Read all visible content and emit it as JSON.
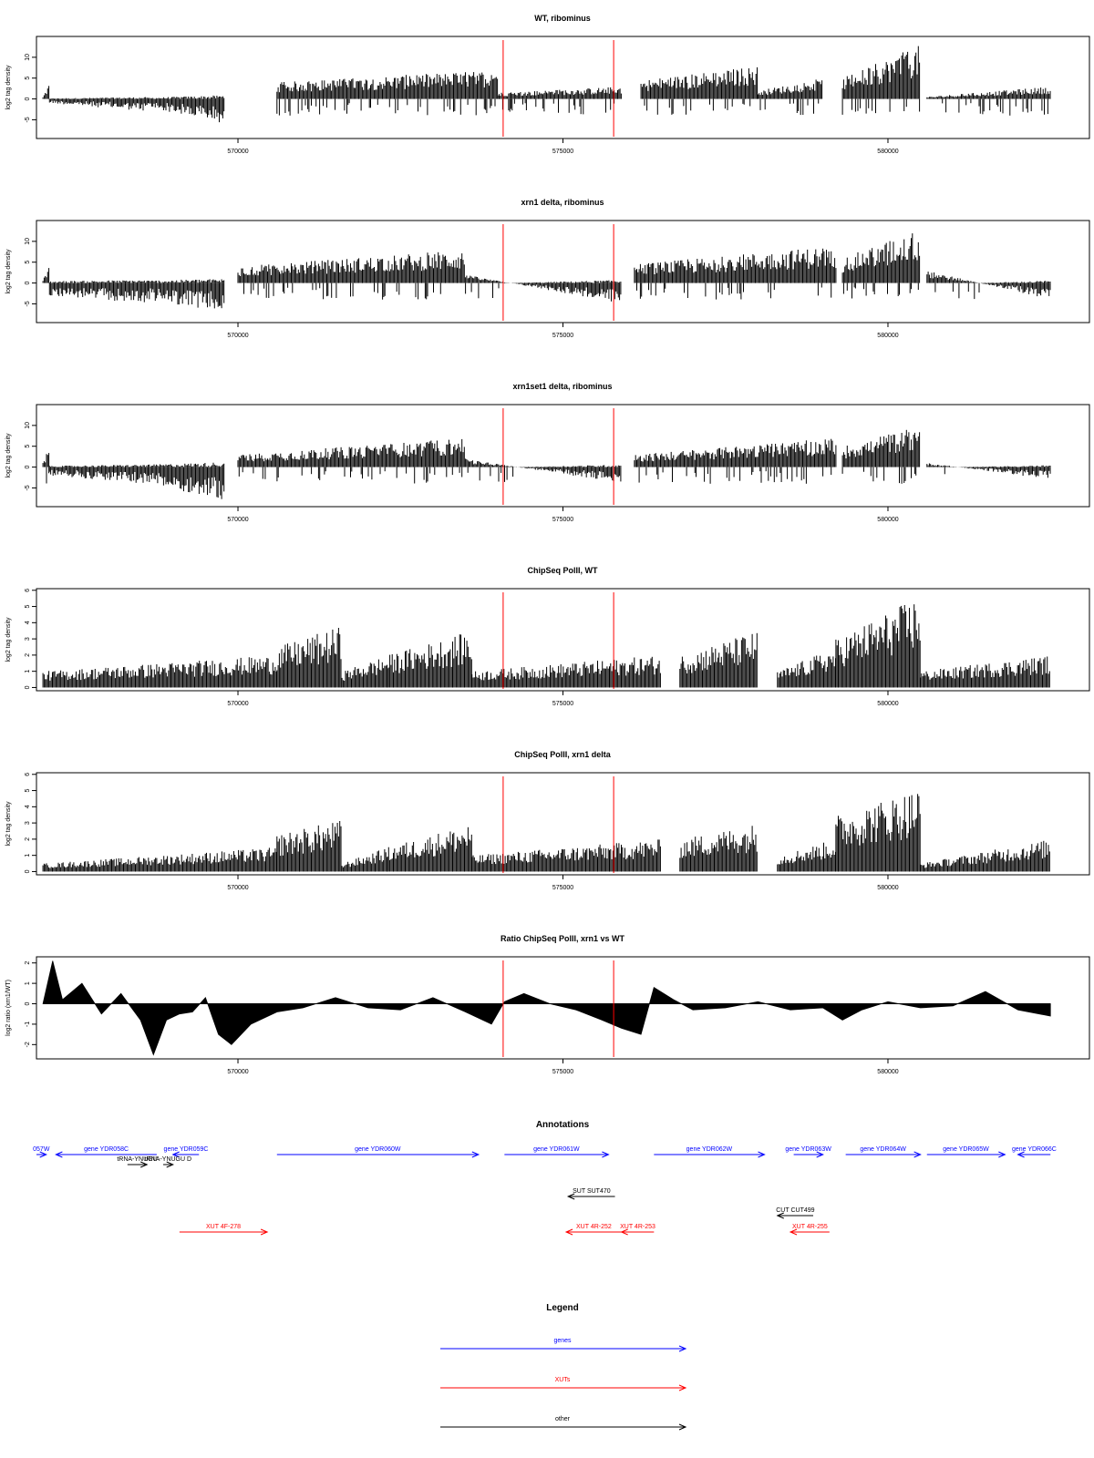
{
  "chart_data": [
    {
      "type": "bar",
      "title": "WT, ribominus",
      "ylabel": "log2 tag density",
      "xlabel": "",
      "xlim": [
        566900,
        583100
      ],
      "ylim": [
        -9.5,
        15
      ],
      "yticks": [
        -5,
        0,
        5,
        10
      ],
      "xticks": [
        570000,
        575000,
        580000
      ],
      "xtick_labels": [
        "570000",
        "575000",
        "580000"
      ],
      "markers": [
        574080,
        575780
      ],
      "segments": [
        {
          "x": [
            567000,
            567100
          ],
          "values": [
            0.5,
            4
          ]
        },
        {
          "x": [
            567100,
            568600
          ],
          "values": [
            -1,
            -3
          ]
        },
        {
          "x": [
            568600,
            569800
          ],
          "values": [
            -2,
            -6
          ]
        },
        {
          "x": [
            570600,
            574000
          ],
          "values": [
            4,
            7
          ]
        },
        {
          "x": [
            574000,
            575900
          ],
          "values": [
            1.5,
            3
          ]
        },
        {
          "x": [
            576200,
            578000
          ],
          "values": [
            4.5,
            8
          ]
        },
        {
          "x": [
            578000,
            579000
          ],
          "values": [
            2,
            5
          ]
        },
        {
          "x": [
            579300,
            580500
          ],
          "values": [
            5,
            13
          ]
        },
        {
          "x": [
            580600,
            582500
          ],
          "values": [
            0.5,
            3
          ]
        }
      ]
    },
    {
      "type": "bar",
      "title": "xrn1 delta, ribominus",
      "ylabel": "log2 tag density",
      "xlabel": "",
      "xlim": [
        566900,
        583100
      ],
      "ylim": [
        -9.5,
        15
      ],
      "yticks": [
        -5,
        0,
        5,
        10
      ],
      "xticks": [
        570000,
        575000,
        580000
      ],
      "xtick_labels": [
        "570000",
        "575000",
        "580000"
      ],
      "markers": [
        574080,
        575780
      ],
      "segments": [
        {
          "x": [
            567000,
            567100
          ],
          "values": [
            1,
            4
          ]
        },
        {
          "x": [
            567100,
            568600
          ],
          "values": [
            -3,
            -5
          ]
        },
        {
          "x": [
            568600,
            569800
          ],
          "values": [
            -4,
            -7
          ]
        },
        {
          "x": [
            570000,
            573500
          ],
          "values": [
            4,
            8
          ]
        },
        {
          "x": [
            573500,
            575900
          ],
          "values": [
            2,
            -5
          ]
        },
        {
          "x": [
            576100,
            579200
          ],
          "values": [
            4.5,
            9
          ]
        },
        {
          "x": [
            579300,
            580500
          ],
          "values": [
            6,
            13
          ]
        },
        {
          "x": [
            580600,
            582500
          ],
          "values": [
            3,
            -4
          ]
        }
      ]
    },
    {
      "type": "bar",
      "title": "xrn1set1 delta, ribominus",
      "ylabel": "log2 tag density",
      "xlabel": "",
      "xlim": [
        566900,
        583100
      ],
      "ylim": [
        -9.5,
        15
      ],
      "yticks": [
        -5,
        0,
        5,
        10
      ],
      "xticks": [
        570000,
        575000,
        580000
      ],
      "xtick_labels": [
        "570000",
        "575000",
        "580000"
      ],
      "markers": [
        574080,
        575780
      ],
      "segments": [
        {
          "x": [
            567000,
            567100
          ],
          "values": [
            1,
            5
          ]
        },
        {
          "x": [
            567100,
            568600
          ],
          "values": [
            -2,
            -4
          ]
        },
        {
          "x": [
            568600,
            569800
          ],
          "values": [
            -4,
            -8
          ]
        },
        {
          "x": [
            570000,
            573500
          ],
          "values": [
            3,
            7
          ]
        },
        {
          "x": [
            573500,
            575900
          ],
          "values": [
            2,
            -4
          ]
        },
        {
          "x": [
            576100,
            579200
          ],
          "values": [
            3,
            7
          ]
        },
        {
          "x": [
            579300,
            580500
          ],
          "values": [
            5,
            10
          ]
        },
        {
          "x": [
            580600,
            582500
          ],
          "values": [
            1,
            -3
          ]
        }
      ]
    },
    {
      "type": "bar",
      "title": "ChipSeq PolII, WT",
      "ylabel": "log2 tag density",
      "xlabel": "",
      "xlim": [
        566900,
        583100
      ],
      "ylim": [
        -0.2,
        6.1
      ],
      "yticks": [
        0,
        1,
        2,
        3,
        4,
        5,
        6
      ],
      "xticks": [
        570000,
        575000,
        580000
      ],
      "xtick_labels": [
        "570000",
        "575000",
        "580000"
      ],
      "markers": [
        574080,
        575780
      ],
      "segments": [
        {
          "x": [
            567000,
            570600
          ],
          "values": [
            1,
            2
          ]
        },
        {
          "x": [
            570600,
            571600
          ],
          "values": [
            2.5,
            3.8
          ]
        },
        {
          "x": [
            571600,
            572300
          ],
          "values": [
            1,
            2
          ]
        },
        {
          "x": [
            572300,
            573600
          ],
          "values": [
            2,
            3.5
          ]
        },
        {
          "x": [
            573600,
            576500
          ],
          "values": [
            1,
            2
          ]
        },
        {
          "x": [
            576800,
            578000
          ],
          "values": [
            2,
            3.5
          ]
        },
        {
          "x": [
            578300,
            579200
          ],
          "values": [
            1,
            2.5
          ]
        },
        {
          "x": [
            579200,
            580500
          ],
          "values": [
            3,
            5.7
          ]
        },
        {
          "x": [
            580500,
            582500
          ],
          "values": [
            1,
            2
          ]
        }
      ]
    },
    {
      "type": "bar",
      "title": "ChipSeq PolII, xrn1 delta",
      "ylabel": "log2 tag density",
      "xlabel": "",
      "xlim": [
        566900,
        583100
      ],
      "ylim": [
        -0.2,
        6.1
      ],
      "yticks": [
        0,
        1,
        2,
        3,
        4,
        5,
        6
      ],
      "xticks": [
        570000,
        575000,
        580000
      ],
      "xtick_labels": [
        "570000",
        "575000",
        "580000"
      ],
      "markers": [
        574080,
        575780
      ],
      "segments": [
        {
          "x": [
            567000,
            570600
          ],
          "values": [
            0.5,
            1.5
          ]
        },
        {
          "x": [
            570600,
            571600
          ],
          "values": [
            2.3,
            3.2
          ]
        },
        {
          "x": [
            571600,
            572300
          ],
          "values": [
            0.5,
            1.5
          ]
        },
        {
          "x": [
            572300,
            573600
          ],
          "values": [
            1.5,
            3
          ]
        },
        {
          "x": [
            573600,
            576500
          ],
          "values": [
            1,
            2
          ]
        },
        {
          "x": [
            576800,
            578000
          ],
          "values": [
            2,
            3
          ]
        },
        {
          "x": [
            578300,
            579200
          ],
          "values": [
            1,
            2
          ]
        },
        {
          "x": [
            579200,
            580500
          ],
          "values": [
            3.5,
            5.2
          ]
        },
        {
          "x": [
            580500,
            582500
          ],
          "values": [
            0.5,
            2
          ]
        }
      ]
    },
    {
      "type": "area",
      "title": "Ratio ChipSeq PolII, xrn1 vs WT",
      "ylabel": "log2 ratio (xrn1/WT)",
      "xlabel": "",
      "xlim": [
        566900,
        583100
      ],
      "ylim": [
        -2.7,
        2.3
      ],
      "yticks": [
        -2,
        -1,
        0,
        1,
        2
      ],
      "xticks": [
        570000,
        575000,
        580000
      ],
      "xtick_labels": [
        "570000",
        "575000",
        "580000"
      ],
      "markers": [
        574080,
        575780
      ],
      "x": [
        567000,
        567150,
        567300,
        567600,
        567900,
        568200,
        568500,
        568700,
        568900,
        569100,
        569300,
        569500,
        569700,
        569900,
        570200,
        570600,
        571000,
        571500,
        572000,
        572500,
        573000,
        573500,
        573900,
        574100,
        574400,
        574800,
        575200,
        575600,
        575900,
        576200,
        576400,
        576700,
        577000,
        577500,
        578000,
        578500,
        579000,
        579300,
        579600,
        580000,
        580500,
        581000,
        581500,
        582000,
        582500
      ],
      "values": [
        0,
        2.1,
        0.2,
        1,
        -0.5,
        0.5,
        -0.8,
        -2.5,
        -0.8,
        -0.5,
        -0.4,
        0.3,
        -1.5,
        -2,
        -1,
        -0.4,
        -0.2,
        0.3,
        -0.2,
        -0.3,
        0.3,
        -0.4,
        -1,
        0.1,
        0.5,
        0,
        -0.3,
        -0.8,
        -1.2,
        -1.5,
        0.8,
        0.2,
        -0.3,
        -0.2,
        0.1,
        -0.3,
        -0.2,
        -0.8,
        -0.3,
        0.1,
        -0.2,
        -0.1,
        0.6,
        -0.3,
        -0.6
      ]
    }
  ],
  "annotations": {
    "title": "Annotations",
    "colors": {
      "genes": "#0000ff",
      "xuts": "#ff0000",
      "other": "#000000"
    },
    "features": [
      {
        "label": "057W",
        "start": 566900,
        "end": 567050,
        "strand": "+",
        "kind": "genes",
        "row": 0
      },
      {
        "label": "gene YDR058C",
        "start": 567200,
        "end": 568750,
        "strand": "-",
        "kind": "genes",
        "row": 0
      },
      {
        "label": "gene YDR059C",
        "start": 569000,
        "end": 569400,
        "strand": "-",
        "kind": "genes",
        "row": 0
      },
      {
        "label": "gene YDR060W",
        "start": 570600,
        "end": 573700,
        "strand": "+",
        "kind": "genes",
        "row": 0
      },
      {
        "label": "gene YDR061W",
        "start": 574100,
        "end": 575700,
        "strand": "+",
        "kind": "genes",
        "row": 0
      },
      {
        "label": "gene YDR062W",
        "start": 576400,
        "end": 578100,
        "strand": "+",
        "kind": "genes",
        "row": 0
      },
      {
        "label": "gene YDR063W",
        "start": 578550,
        "end": 579000,
        "strand": "+",
        "kind": "genes",
        "row": 0
      },
      {
        "label": "gene YDR064W",
        "start": 579350,
        "end": 580500,
        "strand": "+",
        "kind": "genes",
        "row": 0
      },
      {
        "label": "gene YDR065W",
        "start": 580600,
        "end": 581800,
        "strand": "+",
        "kind": "genes",
        "row": 0
      },
      {
        "label": "gene YDR066C",
        "start": 582000,
        "end": 582500,
        "strand": "-",
        "kind": "genes",
        "row": 0
      },
      {
        "label": "tRNA-YNUGU",
        "start": 568300,
        "end": 568600,
        "strand": "+",
        "kind": "other",
        "row": 1
      },
      {
        "label": "tRNA-YNUGU D",
        "start": 568850,
        "end": 569000,
        "strand": "+",
        "kind": "other",
        "row": 1
      },
      {
        "label": "SUT SUT470",
        "start": 575080,
        "end": 575800,
        "strand": "-",
        "kind": "other",
        "row": 2
      },
      {
        "label": "CUT CUT499",
        "start": 578300,
        "end": 578850,
        "strand": "-",
        "kind": "other",
        "row": 3
      },
      {
        "label": "XUT 4F-278",
        "start": 569100,
        "end": 570450,
        "strand": "+",
        "kind": "xuts",
        "row": 4
      },
      {
        "label": "XUT 4R-252",
        "start": 575050,
        "end": 575900,
        "strand": "-",
        "kind": "xuts",
        "row": 4
      },
      {
        "label": "XUT 4R-253",
        "start": 575900,
        "end": 576400,
        "strand": "-",
        "kind": "xuts",
        "row": 4
      },
      {
        "label": "XUT 4R-255",
        "start": 578500,
        "end": 579100,
        "strand": "-",
        "kind": "xuts",
        "row": 4
      }
    ]
  },
  "legend": {
    "title": "Legend",
    "items": [
      {
        "label": "genes",
        "color": "#0000ff"
      },
      {
        "label": "XUTs",
        "color": "#ff0000"
      },
      {
        "label": "other",
        "color": "#000000"
      }
    ]
  }
}
